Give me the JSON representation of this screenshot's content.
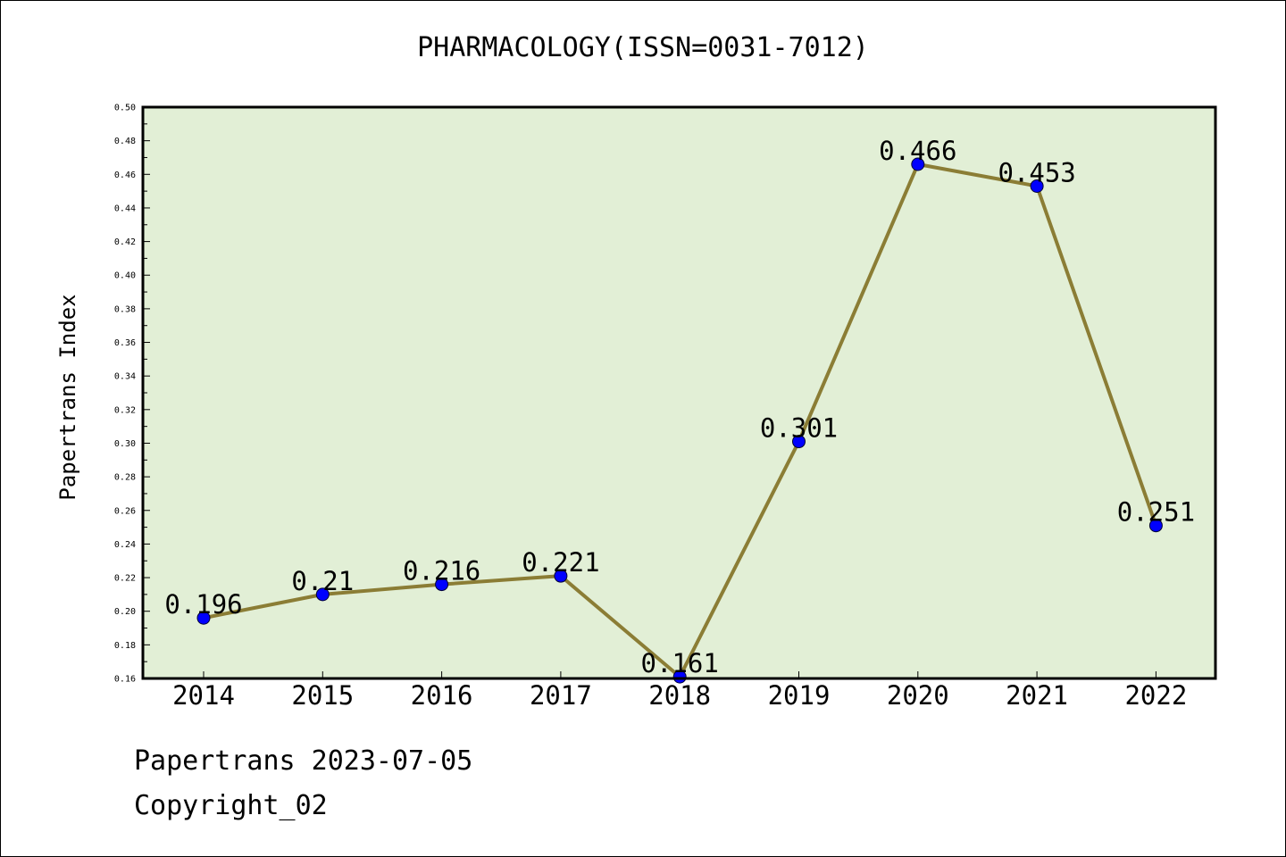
{
  "chart_data": {
    "type": "line",
    "title": "PHARMACOLOGY(ISSN=0031-7012)",
    "xlabel": "",
    "ylabel": "Papertrans Index",
    "categories": [
      "2014",
      "2015",
      "2016",
      "2017",
      "2018",
      "2019",
      "2020",
      "2021",
      "2022"
    ],
    "series": [
      {
        "values": [
          0.196,
          0.21,
          0.216,
          0.221,
          0.161,
          0.301,
          0.466,
          0.453,
          0.251
        ],
        "data_labels": [
          "0.196",
          "0.21",
          "0.216",
          "0.221",
          "0.161",
          "0.301",
          "0.466",
          "0.453",
          "0.251"
        ]
      }
    ],
    "ylim": [
      0.16,
      0.5
    ],
    "yticks": [
      "0.16",
      "0.18",
      "0.20",
      "0.22",
      "0.24",
      "0.26",
      "0.28",
      "0.30",
      "0.32",
      "0.34",
      "0.36",
      "0.38",
      "0.40",
      "0.42",
      "0.44",
      "0.46",
      "0.48",
      "0.50"
    ],
    "grid": false,
    "colors": {
      "plot_background": "#e2efd6",
      "line": "#8b7d35",
      "marker": "#0000ff"
    }
  },
  "footer": {
    "line1": "Papertrans 2023-07-05",
    "line2": "Copyright_02"
  }
}
